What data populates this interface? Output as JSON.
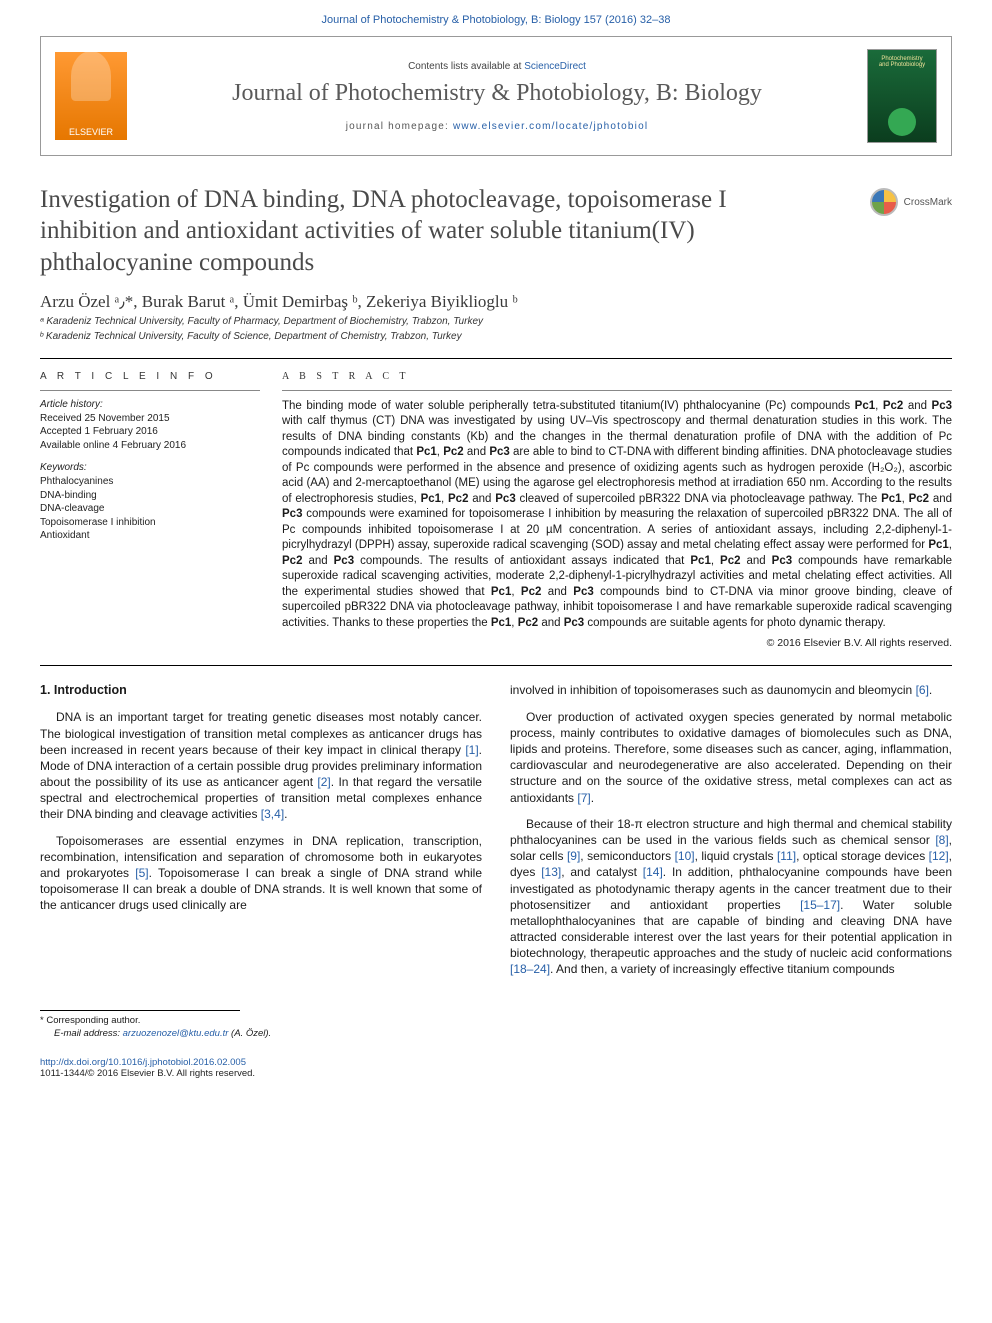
{
  "topLine": "Journal of Photochemistry & Photobiology, B: Biology 157 (2016) 32–38",
  "header": {
    "contentsPrefix": "Contents lists available at ",
    "contentsLink": "ScienceDirect",
    "journalName": "Journal of Photochemistry & Photobiology, B: Biology",
    "homepagePrefix": "journal homepage: ",
    "homepageUrl": "www.elsevier.com/locate/jphotobiol",
    "elsevierLabel": "ELSEVIER",
    "coverLine1": "Photochemistry",
    "coverLine2": "and Photobiology"
  },
  "crossmark": "CrossMark",
  "title": "Investigation of DNA binding, DNA photocleavage, topoisomerase I inhibition and antioxidant activities of water soluble titanium(IV) phthalocyanine compounds",
  "authors": "Arzu Özel ᵃ٫*, Burak Barut ᵃ, Ümit Demirbaş ᵇ, Zekeriya Biyiklioglu ᵇ",
  "affiliations": [
    "ᵃ Karadeniz Technical University, Faculty of Pharmacy, Department of Biochemistry, Trabzon, Turkey",
    "ᵇ Karadeniz Technical University, Faculty of Science, Department of Chemistry, Trabzon, Turkey"
  ],
  "articleInfo": {
    "label": "A R T I C L E   I N F O",
    "historyLabel": "Article history:",
    "history": [
      "Received 25 November 2015",
      "Accepted 1 February 2016",
      "Available online 4 February 2016"
    ],
    "keywordsLabel": "Keywords:",
    "keywords": [
      "Phthalocyanines",
      "DNA-binding",
      "DNA-cleavage",
      "Topoisomerase I inhibition",
      "Antioxidant"
    ]
  },
  "abstract": {
    "label": "A B S T R A C T",
    "text": "The binding mode of water soluble peripherally tetra-substituted titanium(IV) phthalocyanine (Pc) compounds Pc1, Pc2 and Pc3 with calf thymus (CT) DNA was investigated by using UV–Vis spectroscopy and thermal denaturation studies in this work. The results of DNA binding constants (Kb) and the changes in the thermal denaturation profile of DNA with the addition of Pc compounds indicated that Pc1, Pc2 and Pc3 are able to bind to CT-DNA with different binding affinities. DNA photocleavage studies of Pc compounds were performed in the absence and presence of oxidizing agents such as hydrogen peroxide (H₂O₂), ascorbic acid (AA) and 2-mercaptoethanol (ME) using the agarose gel electrophoresis method at irradiation 650 nm. According to the results of electrophoresis studies, Pc1, Pc2 and Pc3 cleaved of supercoiled pBR322 DNA via photocleavage pathway. The Pc1, Pc2 and Pc3 compounds were examined for topoisomerase I inhibition by measuring the relaxation of supercoiled pBR322 DNA. The all of Pc compounds inhibited topoisomerase I at 20 µM concentration. A series of antioxidant assays, including 2,2-diphenyl-1-picrylhydrazyl (DPPH) assay, superoxide radical scavenging (SOD) assay and metal chelating effect assay were performed for Pc1, Pc2 and Pc3 compounds. The results of antioxidant assays indicated that Pc1, Pc2 and Pc3 compounds have remarkable superoxide radical scavenging activities, moderate 2,2-diphenyl-1-picrylhydrazyl activities and metal chelating effect activities. All the experimental studies showed that Pc1, Pc2 and Pc3 compounds bind to CT-DNA via minor groove binding, cleave of supercoiled pBR322 DNA via photocleavage pathway, inhibit topoisomerase I and have remarkable superoxide radical scavenging activities. Thanks to these properties the Pc1, Pc2 and Pc3 compounds are suitable agents for photo dynamic therapy.",
    "copyright": "© 2016 Elsevier B.V. All rights reserved."
  },
  "body": {
    "heading": "1. Introduction",
    "leftParas": [
      "DNA is an important target for treating genetic diseases most notably cancer. The biological investigation of transition metal complexes as anticancer drugs has been increased in recent years because of their key impact in clinical therapy [1]. Mode of DNA interaction of a certain possible drug provides preliminary information about the possibility of its use as anticancer agent [2]. In that regard the versatile spectral and electrochemical properties of transition metal complexes enhance their DNA binding and cleavage activities [3,4].",
      "Topoisomerases are essential enzymes in DNA replication, transcription, recombination, intensification and separation of chromosome both in eukaryotes and prokaryotes [5]. Topoisomerase I can break a single of DNA strand while topoisomerase II can break a double of DNA strands. It is well known that some of the anticancer drugs used clinically are"
    ],
    "rightParas": [
      "involved in inhibition of topoisomerases such as daunomycin and bleomycin [6].",
      "Over production of activated oxygen species generated by normal metabolic process, mainly contributes to oxidative damages of biomolecules such as DNA, lipids and proteins. Therefore, some diseases such as cancer, aging, inflammation, cardiovascular and neurodegenerative are also accelerated. Depending on their structure and on the source of the oxidative stress, metal complexes can act as antioxidants [7].",
      "Because of their 18-π electron structure and high thermal and chemical stability phthalocyanines can be used in the various fields such as chemical sensor [8], solar cells [9], semiconductors [10], liquid crystals [11], optical storage devices [12], dyes [13], and catalyst [14]. In addition, phthalocyanine compounds have been investigated as photodynamic therapy agents in the cancer treatment due to their photosensitizer and antioxidant properties [15–17]. Water soluble metallophthalocyanines that are capable of binding and cleaving DNA have attracted considerable interest over the last years for their potential application in biotechnology, therapeutic approaches and the study of nucleic acid conformations [18–24]. And then, a variety of increasingly effective titanium compounds"
    ]
  },
  "footer": {
    "corrLabel": "* Corresponding author.",
    "emailLabel": "E-mail address: ",
    "email": "arzuozenozel@ktu.edu.tr",
    "emailSuffix": " (A. Özel).",
    "doi": "http://dx.doi.org/10.1016/j.jphotobiol.2016.02.005",
    "issn": "1011-1344/© 2016 Elsevier B.V. All rights reserved."
  },
  "colors": {
    "link": "#2860a8",
    "text": "#1a1a1a",
    "headerGrey": "#595959"
  }
}
